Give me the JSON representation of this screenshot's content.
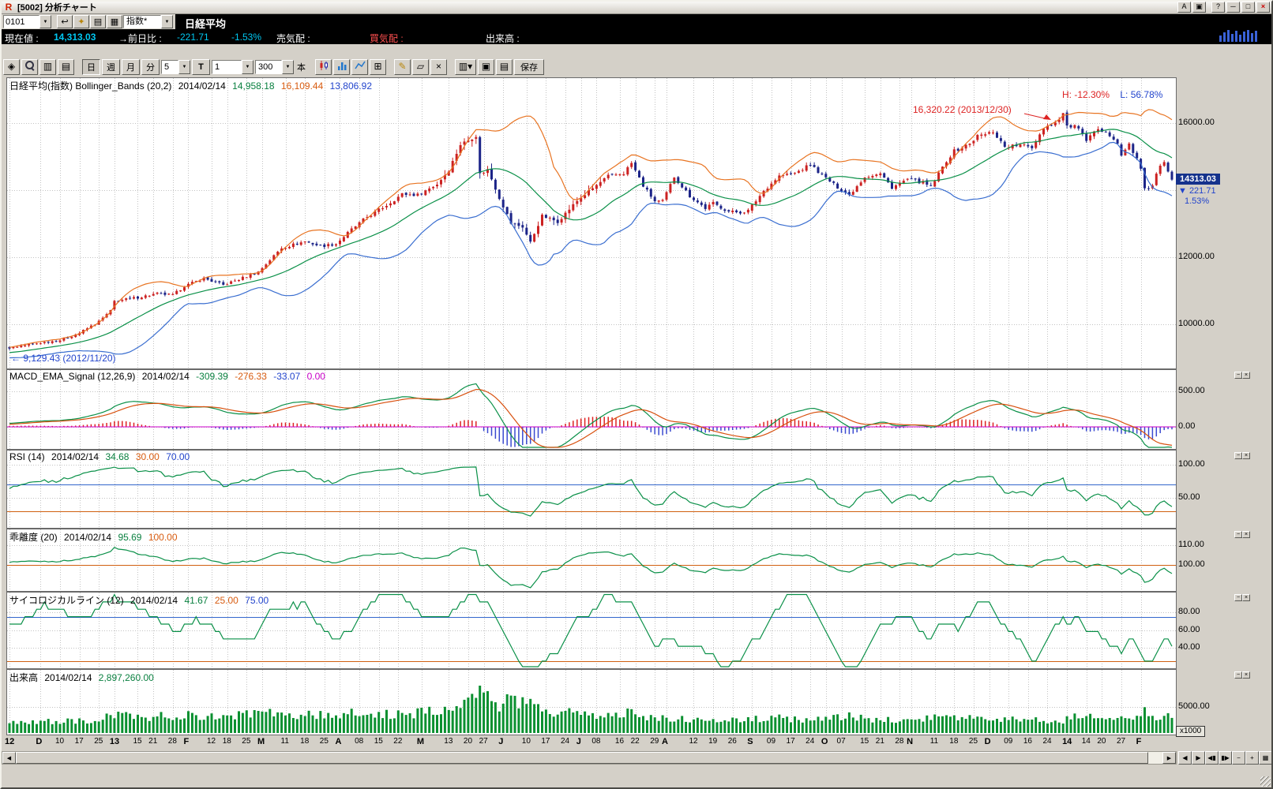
{
  "titlebar": {
    "title": "[5002] 分析チャート",
    "buttons": {
      "a": "A",
      "help": "?",
      "min": "─",
      "max": "□",
      "close": "×"
    }
  },
  "icons": {
    "app_logo": "R",
    "window_mode": "▣",
    "undo": "↩",
    "key": "✦",
    "memo": "▤",
    "calendar": "▦",
    "combo_arrow": "▼",
    "pointer": "◈",
    "copy": "▥",
    "page": "▤",
    "grid": "⊞",
    "pencil": "✎",
    "eraser": "▱",
    "delete": "×",
    "capture": "▣",
    "dropdown": "▾",
    "print": "▤"
  },
  "toolbar1": {
    "code_value": "0101",
    "category_value": "指数*"
  },
  "symbol": {
    "name": "日経平均"
  },
  "infobar": {
    "current_label": "現在値 :",
    "current_value": "14,313.03",
    "change_label": "→前日比 :",
    "change_value": "-221.71",
    "change_pct": "-1.53%",
    "ask_label": "売気配 :",
    "bid_label": "買気配 :",
    "volume_label": "出来高 :"
  },
  "toolbar2": {
    "periods": [
      "日",
      "週",
      "月",
      "分"
    ],
    "minute_value": "5",
    "tick_label": "T",
    "interval_value": "1",
    "bar_count": "300",
    "bar_unit": "本",
    "save_label": "保存"
  },
  "panels": {
    "price": {
      "title": "日経平均(指数) Bollinger_Bands (20,2)",
      "date": "2014/02/14",
      "mid_value": "14,958.18",
      "upper_value": "16,109.44",
      "lower_value": "13,806.92",
      "axis_ticks": [
        {
          "label": "16000.00",
          "v": 16000
        },
        {
          "label": "12000.00",
          "v": 12000
        },
        {
          "label": "10000.00",
          "v": 10000
        }
      ],
      "badge_price": "14313.03",
      "badge_change": "▼ 221.71",
      "badge_pct": "1.53%",
      "anno_high": "H: -12.30%",
      "anno_low": "L: 56.78%",
      "anno_peak": "16,320.22 (2013/12/30)",
      "anno_start": "← 9,129.43 (2012/11/20)"
    },
    "macd": {
      "title": "MACD_EMA_Signal (12,26,9)",
      "date": "2014/02/14",
      "macd_value": "-309.39",
      "signal_value": "-276.33",
      "hist_value": "-33.07",
      "zero_value": "0.00",
      "axis_ticks": [
        {
          "label": "500.00",
          "v": 500
        },
        {
          "label": "0.00",
          "v": 0
        }
      ]
    },
    "rsi": {
      "title": "RSI (14)",
      "date": "2014/02/14",
      "value": "34.68",
      "lower_value": "30.00",
      "upper_value": "70.00",
      "axis_ticks": [
        {
          "label": "100.00",
          "v": 100
        },
        {
          "label": "50.00",
          "v": 50
        }
      ]
    },
    "kairi": {
      "title": "乖離度 (20)",
      "date": "2014/02/14",
      "value": "95.69",
      "base_value": "100.00",
      "axis_ticks": [
        {
          "label": "110.00",
          "v": 110
        },
        {
          "label": "100.00",
          "v": 100
        }
      ]
    },
    "psych": {
      "title": "サイコロジカルライン (12)",
      "date": "2014/02/14",
      "value": "41.67",
      "lower_value": "25.00",
      "upper_value": "75.00",
      "axis_ticks": [
        {
          "label": "80.00",
          "v": 80
        },
        {
          "label": "60.00",
          "v": 60
        },
        {
          "label": "40.00",
          "v": 40
        }
      ]
    },
    "volume": {
      "title": "出来高",
      "date": "2014/02/14",
      "value": "2,897,260.00",
      "axis_ticks": [
        {
          "label": "5000.00",
          "v": 5000
        }
      ],
      "unit_badge": "x1000"
    }
  },
  "scrollbar": {
    "left": "◀",
    "right": "▶",
    "nav": [
      "◀",
      "▶",
      "◀▮",
      "▮▶",
      "−",
      "+",
      "▦"
    ]
  },
  "colors": {
    "candle_up": "#cc2222",
    "candle_down": "#1c2488",
    "boll_mid": "#0a9048",
    "boll_upper": "#e87422",
    "boll_lower": "#3a6ed0",
    "macd_line": "#0a9048",
    "macd_signal": "#d8500e",
    "hist_pos": "#dd2222",
    "hist_neg": "#3a4ad0",
    "zero_line": "#cc00cc",
    "rsi_line": "#0a9048",
    "upper_band": "#3366cc",
    "lower_band": "#d06010",
    "volume_bar": "#0a9030",
    "grid": "#c2c2c2",
    "accent_cyan": "#00c8f2",
    "bid_red": "#ff5050",
    "badge_bg": "#15328c"
  },
  "chart_data": {
    "type": "candlestick",
    "symbol": "日経平均 (Nikkei 225 index)",
    "timeframe": "daily",
    "bars": 300,
    "first_bar_date": "2012/11/21",
    "last_bar_date": "2014/02/14",
    "price": {
      "ylim": [
        8659,
        17341
      ],
      "gridlines": [
        16000,
        14000,
        12000,
        10000
      ],
      "pad_anchors": [
        [
          -40,
          8920
        ],
        [
          -28,
          9220
        ],
        [
          -16,
          9060
        ],
        [
          -6,
          9200
        ]
      ],
      "close_anchors": [
        [
          0,
          9300
        ],
        [
          8,
          9450
        ],
        [
          13,
          9530
        ],
        [
          18,
          9740
        ],
        [
          23,
          10080
        ],
        [
          26,
          10395
        ],
        [
          27,
          10688
        ],
        [
          33,
          10800
        ],
        [
          38,
          10913
        ],
        [
          42,
          10866
        ],
        [
          45,
          11139
        ],
        [
          50,
          11370
        ],
        [
          55,
          11170
        ],
        [
          60,
          11385
        ],
        [
          64,
          11560
        ],
        [
          70,
          12280
        ],
        [
          76,
          12470
        ],
        [
          80,
          12330
        ],
        [
          84,
          12398
        ],
        [
          88,
          12830
        ],
        [
          92,
          13200
        ],
        [
          97,
          13550
        ],
        [
          101,
          13880
        ],
        [
          105,
          13860
        ],
        [
          110,
          14180
        ],
        [
          113,
          14600
        ],
        [
          116,
          15360
        ],
        [
          120,
          15627
        ],
        [
          121,
          14483
        ],
        [
          123,
          14612
        ],
        [
          126,
          13775
        ],
        [
          129,
          13014
        ],
        [
          132,
          12904
        ],
        [
          134,
          12445
        ],
        [
          137,
          13230
        ],
        [
          141,
          13062
        ],
        [
          146,
          13677
        ],
        [
          150,
          14055
        ],
        [
          154,
          14416
        ],
        [
          158,
          14506
        ],
        [
          160,
          14808
        ],
        [
          163,
          14130
        ],
        [
          166,
          13670
        ],
        [
          168,
          13668
        ],
        [
          171,
          14400
        ],
        [
          175,
          13825
        ],
        [
          179,
          13460
        ],
        [
          181,
          13610
        ],
        [
          185,
          13365
        ],
        [
          188,
          13338
        ],
        [
          190,
          13389
        ],
        [
          194,
          13978
        ],
        [
          198,
          14425
        ],
        [
          202,
          14505
        ],
        [
          206,
          14760
        ],
        [
          209,
          14456
        ],
        [
          212,
          14170
        ],
        [
          216,
          13853
        ],
        [
          220,
          14404
        ],
        [
          224,
          14486
        ],
        [
          227,
          14088
        ],
        [
          231,
          14328
        ],
        [
          235,
          14225
        ],
        [
          237,
          14090
        ],
        [
          241,
          14876
        ],
        [
          243,
          15165
        ],
        [
          247,
          15382
        ],
        [
          249,
          15619
        ],
        [
          251,
          15662
        ],
        [
          253,
          15749
        ],
        [
          256,
          15300
        ],
        [
          260,
          15341
        ],
        [
          263,
          15278
        ],
        [
          266,
          15870
        ],
        [
          269,
          16009
        ],
        [
          271,
          16291
        ],
        [
          272,
          15908
        ],
        [
          275,
          15880
        ],
        [
          277,
          15422
        ],
        [
          279,
          15747
        ],
        [
          282,
          15795
        ],
        [
          285,
          15391
        ],
        [
          286,
          15005
        ],
        [
          288,
          15383
        ],
        [
          290,
          14914
        ],
        [
          291,
          14619
        ],
        [
          292,
          14008
        ],
        [
          294,
          14155
        ],
        [
          295,
          14462
        ],
        [
          296,
          14718
        ],
        [
          297,
          14800
        ],
        [
          298,
          14534
        ],
        [
          299,
          14313
        ]
      ],
      "bollinger_period": 20,
      "bollinger_sigma": 2,
      "high_marker": {
        "value": 16320.22,
        "date": "2013/12/30"
      },
      "low_marker": {
        "value": 9129.43,
        "date": "2012/11/20"
      },
      "last_close": 14313.03,
      "change": -221.71,
      "change_pct": -1.53
    },
    "macd": {
      "fast": 12,
      "slow": 26,
      "signal": 9,
      "last_macd": -309.39,
      "last_signal": -276.33,
      "last_hist": -33.07,
      "gridlines": [
        500,
        0
      ]
    },
    "rsi": {
      "period": 14,
      "last": 34.68,
      "upper": 70,
      "lower": 30,
      "gridlines": [
        100,
        50
      ]
    },
    "kairi": {
      "period": 20,
      "last": 95.69,
      "base": 100,
      "gridlines": [
        110,
        100
      ]
    },
    "psych": {
      "period": 12,
      "last": 41.67,
      "upper": 75,
      "lower": 25,
      "gridlines": [
        80,
        60,
        40
      ]
    },
    "volume": {
      "unit": 1000,
      "last": 2897.26,
      "gridline": 5000,
      "anchors": [
        [
          0,
          1900
        ],
        [
          10,
          2200
        ],
        [
          20,
          2500
        ],
        [
          27,
          3500
        ],
        [
          35,
          3100
        ],
        [
          45,
          3400
        ],
        [
          55,
          3200
        ],
        [
          65,
          3700
        ],
        [
          75,
          3400
        ],
        [
          85,
          3400
        ],
        [
          90,
          4300
        ],
        [
          100,
          3500
        ],
        [
          106,
          3900
        ],
        [
          113,
          4400
        ],
        [
          118,
          5600
        ],
        [
          120,
          8200
        ],
        [
          122,
          7400
        ],
        [
          124,
          6000
        ],
        [
          127,
          5600
        ],
        [
          130,
          6400
        ],
        [
          134,
          7000
        ],
        [
          137,
          5200
        ],
        [
          140,
          4300
        ],
        [
          147,
          3800
        ],
        [
          152,
          3400
        ],
        [
          158,
          4000
        ],
        [
          162,
          3200
        ],
        [
          168,
          2800
        ],
        [
          172,
          2700
        ],
        [
          178,
          2300
        ],
        [
          184,
          2200
        ],
        [
          191,
          2700
        ],
        [
          196,
          2900
        ],
        [
          203,
          2600
        ],
        [
          210,
          2700
        ],
        [
          216,
          3100
        ],
        [
          222,
          2600
        ],
        [
          228,
          2400
        ],
        [
          232,
          2700
        ],
        [
          238,
          3200
        ],
        [
          244,
          3000
        ],
        [
          250,
          2800
        ],
        [
          255,
          2600
        ],
        [
          260,
          2400
        ],
        [
          265,
          2600
        ],
        [
          271,
          2300
        ],
        [
          273,
          3000
        ],
        [
          277,
          3300
        ],
        [
          282,
          3000
        ],
        [
          286,
          3200
        ],
        [
          290,
          2900
        ],
        [
          292,
          4100
        ],
        [
          295,
          3300
        ],
        [
          299,
          2897
        ]
      ]
    },
    "xaxis_ticks": [
      [
        0,
        "12",
        1
      ],
      [
        8,
        "D",
        1
      ],
      [
        13,
        "10",
        0
      ],
      [
        18,
        "17",
        0
      ],
      [
        23,
        "25",
        0
      ],
      [
        27,
        "13",
        1
      ],
      [
        33,
        "15",
        0
      ],
      [
        37,
        "21",
        0
      ],
      [
        42,
        "28",
        0
      ],
      [
        46,
        "F",
        1
      ],
      [
        52,
        "12",
        0
      ],
      [
        56,
        "18",
        0
      ],
      [
        61,
        "25",
        0
      ],
      [
        65,
        "M",
        1
      ],
      [
        71,
        "11",
        0
      ],
      [
        76,
        "18",
        0
      ],
      [
        81,
        "25",
        0
      ],
      [
        85,
        "A",
        1
      ],
      [
        90,
        "08",
        0
      ],
      [
        95,
        "15",
        0
      ],
      [
        100,
        "22",
        0
      ],
      [
        106,
        "M",
        1
      ],
      [
        113,
        "13",
        0
      ],
      [
        118,
        "20",
        0
      ],
      [
        122,
        "27",
        0
      ],
      [
        127,
        "J",
        1
      ],
      [
        133,
        "10",
        0
      ],
      [
        138,
        "17",
        0
      ],
      [
        143,
        "24",
        0
      ],
      [
        147,
        "J",
        1
      ],
      [
        151,
        "08",
        0
      ],
      [
        157,
        "16",
        0
      ],
      [
        161,
        "22",
        0
      ],
      [
        166,
        "29",
        0
      ],
      [
        169,
        "A",
        1
      ],
      [
        176,
        "12",
        0
      ],
      [
        181,
        "19",
        0
      ],
      [
        186,
        "26",
        0
      ],
      [
        191,
        "S",
        1
      ],
      [
        196,
        "09",
        0
      ],
      [
        201,
        "17",
        0
      ],
      [
        206,
        "24",
        0
      ],
      [
        210,
        "O",
        1
      ],
      [
        214,
        "07",
        0
      ],
      [
        220,
        "15",
        0
      ],
      [
        224,
        "21",
        0
      ],
      [
        229,
        "28",
        0
      ],
      [
        232,
        "N",
        1
      ],
      [
        238,
        "11",
        0
      ],
      [
        243,
        "18",
        0
      ],
      [
        248,
        "25",
        0
      ],
      [
        252,
        "D",
        1
      ],
      [
        257,
        "09",
        0
      ],
      [
        262,
        "16",
        0
      ],
      [
        267,
        "24",
        0
      ],
      [
        272,
        "14",
        1
      ],
      [
        277,
        "14",
        0
      ],
      [
        281,
        "20",
        0
      ],
      [
        286,
        "27",
        0
      ],
      [
        291,
        "F",
        1
      ]
    ]
  }
}
